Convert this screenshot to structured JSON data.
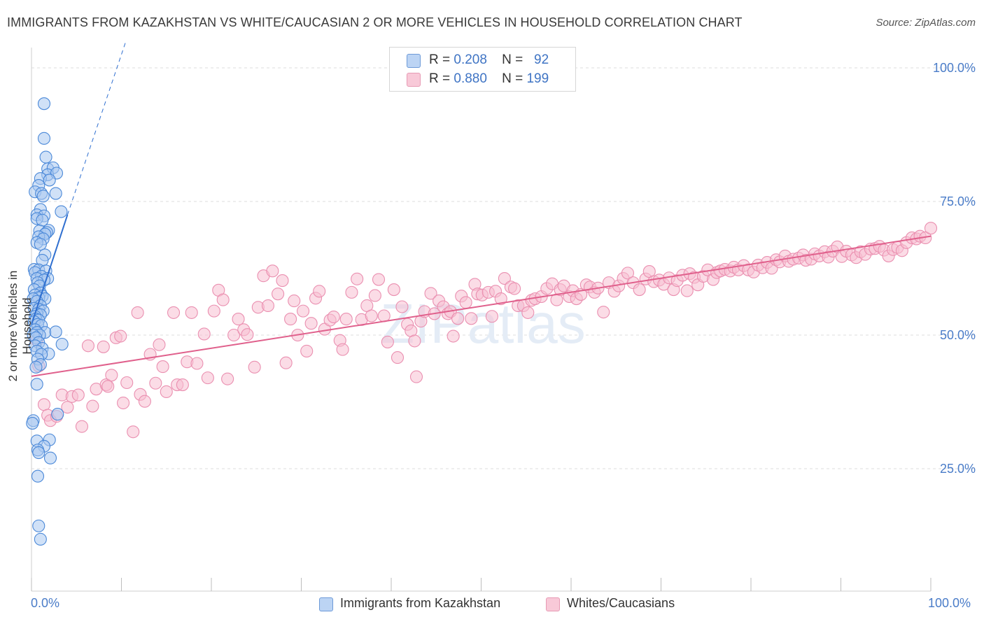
{
  "title": "IMMIGRANTS FROM KAZAKHSTAN VS WHITE/CAUCASIAN 2 OR MORE VEHICLES IN HOUSEHOLD CORRELATION CHART",
  "source": "Source: ZipAtlas.com",
  "watermark": "ZIPatlas",
  "colors": {
    "blue_fill": "#aac8f0",
    "blue_stroke": "#4a88d8",
    "blue_line": "#2f6fd0",
    "pink_fill": "#f7c0d2",
    "pink_stroke": "#ea8fb0",
    "pink_line": "#e0608c",
    "tick_label": "#4a7cc8",
    "grid": "#dddddd"
  },
  "legend": {
    "rows": [
      {
        "r_label": "R =",
        "r_value": "0.208",
        "n_label": "N =",
        "n_value": "92"
      },
      {
        "r_label": "R =",
        "r_value": "0.880",
        "n_label": "N =",
        "n_value": "199"
      }
    ]
  },
  "bottom_legend": [
    "Immigrants from Kazakhstan",
    "Whites/Caucasians"
  ],
  "chart_data": {
    "type": "scatter",
    "title": "IMMIGRANTS FROM KAZAKHSTAN VS WHITE/CAUCASIAN 2 OR MORE VEHICLES IN HOUSEHOLD CORRELATION CHART",
    "xlabel": "",
    "ylabel": "2 or more Vehicles in Household",
    "xlim": [
      0,
      100
    ],
    "ylim": [
      5,
      102
    ],
    "x_tick_labels": [
      "0.0%",
      "100.0%"
    ],
    "y_ticks": [
      25,
      50,
      75,
      100
    ],
    "y_tick_labels": [
      "25.0%",
      "50.0%",
      "75.0%",
      "100.0%"
    ],
    "grid": true,
    "legend_position": "top-center",
    "series": [
      {
        "name": "Immigrants from Kazakhstan",
        "color": "blue",
        "R": 0.208,
        "N": 92,
        "trend": {
          "x": [
            0.0,
            4.0
          ],
          "y": [
            52.0,
            72.5
          ],
          "extended_to": [
            10.5,
            105.0
          ]
        },
        "points": [
          [
            1.4,
            93.3
          ],
          [
            1.4,
            86.8
          ],
          [
            1.6,
            83.3
          ],
          [
            1.8,
            81.1
          ],
          [
            2.4,
            81.3
          ],
          [
            1.8,
            80.0
          ],
          [
            2.8,
            80.3
          ],
          [
            1.0,
            79.3
          ],
          [
            2.0,
            79.0
          ],
          [
            0.8,
            78.0
          ],
          [
            0.4,
            76.8
          ],
          [
            1.1,
            76.5
          ],
          [
            1.3,
            76.0
          ],
          [
            2.7,
            76.5
          ],
          [
            1.0,
            73.5
          ],
          [
            3.3,
            73.1
          ],
          [
            0.6,
            72.5
          ],
          [
            1.4,
            72.3
          ],
          [
            0.6,
            71.8
          ],
          [
            1.2,
            71.5
          ],
          [
            0.9,
            69.5
          ],
          [
            1.9,
            69.6
          ],
          [
            1.7,
            69.2
          ],
          [
            1.5,
            68.9
          ],
          [
            0.8,
            68.4
          ],
          [
            1.3,
            68.0
          ],
          [
            0.6,
            67.3
          ],
          [
            1.0,
            67.0
          ],
          [
            1.5,
            65.0
          ],
          [
            1.2,
            64.0
          ],
          [
            0.3,
            62.3
          ],
          [
            0.8,
            62.2
          ],
          [
            1.6,
            62.0
          ],
          [
            0.4,
            61.7
          ],
          [
            1.1,
            61.0
          ],
          [
            0.6,
            60.6
          ],
          [
            1.8,
            60.6
          ],
          [
            1.4,
            60.3
          ],
          [
            0.7,
            59.8
          ],
          [
            0.9,
            59.2
          ],
          [
            0.3,
            58.5
          ],
          [
            1.0,
            57.9
          ],
          [
            0.4,
            57.5
          ],
          [
            1.2,
            57.3
          ],
          [
            0.8,
            57.0
          ],
          [
            1.5,
            56.8
          ],
          [
            0.2,
            56.8
          ],
          [
            0.6,
            56.3
          ],
          [
            1.0,
            55.5
          ],
          [
            0.3,
            55.0
          ],
          [
            0.8,
            54.8
          ],
          [
            1.3,
            54.5
          ],
          [
            0.6,
            54.0
          ],
          [
            1.0,
            53.8
          ],
          [
            0.4,
            53.5
          ],
          [
            0.5,
            53.0
          ],
          [
            0.8,
            52.8
          ],
          [
            0.3,
            52.5
          ],
          [
            0.7,
            52.0
          ],
          [
            1.1,
            51.8
          ],
          [
            0.4,
            51.0
          ],
          [
            1.5,
            50.5
          ],
          [
            2.7,
            50.6
          ],
          [
            0.6,
            50.5
          ],
          [
            0.9,
            50.0
          ],
          [
            0.2,
            50.0
          ],
          [
            0.5,
            49.5
          ],
          [
            0.8,
            48.6
          ],
          [
            3.4,
            48.3
          ],
          [
            0.4,
            48.0
          ],
          [
            1.2,
            47.5
          ],
          [
            0.6,
            47.0
          ],
          [
            1.9,
            46.5
          ],
          [
            1.1,
            46.4
          ],
          [
            0.7,
            45.5
          ],
          [
            1.0,
            44.5
          ],
          [
            0.5,
            44.0
          ],
          [
            0.6,
            40.8
          ],
          [
            2.9,
            35.2
          ],
          [
            0.2,
            34.0
          ],
          [
            0.1,
            33.5
          ],
          [
            2.0,
            30.4
          ],
          [
            0.6,
            30.2
          ],
          [
            1.4,
            29.2
          ],
          [
            0.7,
            28.5
          ],
          [
            0.8,
            28.0
          ],
          [
            2.1,
            27.0
          ],
          [
            0.7,
            23.6
          ],
          [
            0.8,
            14.3
          ],
          [
            1.0,
            11.8
          ]
        ]
      },
      {
        "name": "Whites/Caucasians",
        "color": "pink",
        "R": 0.88,
        "N": 199,
        "trend": {
          "x": [
            0.0,
            100.0
          ],
          "y": [
            42.3,
            68.5
          ]
        },
        "points": [
          [
            0.6,
            49.0
          ],
          [
            0.8,
            44.2
          ],
          [
            1.4,
            37.0
          ],
          [
            1.8,
            35.0
          ],
          [
            2.1,
            34.0
          ],
          [
            2.8,
            34.8
          ],
          [
            3.4,
            38.8
          ],
          [
            4.0,
            36.5
          ],
          [
            4.5,
            38.5
          ],
          [
            5.2,
            38.8
          ],
          [
            5.6,
            32.9
          ],
          [
            6.3,
            48.0
          ],
          [
            6.8,
            36.7
          ],
          [
            7.2,
            39.9
          ],
          [
            8.0,
            47.8
          ],
          [
            8.3,
            40.7
          ],
          [
            8.5,
            40.4
          ],
          [
            8.9,
            42.5
          ],
          [
            9.4,
            49.5
          ],
          [
            9.9,
            49.8
          ],
          [
            10.2,
            37.3
          ],
          [
            10.6,
            41.1
          ],
          [
            11.3,
            31.9
          ],
          [
            11.8,
            54.2
          ],
          [
            12.1,
            38.9
          ],
          [
            12.6,
            37.6
          ],
          [
            13.2,
            46.4
          ],
          [
            13.8,
            41.0
          ],
          [
            14.2,
            48.2
          ],
          [
            14.6,
            44.1
          ],
          [
            15.0,
            39.4
          ],
          [
            15.8,
            54.2
          ],
          [
            16.2,
            40.7
          ],
          [
            16.8,
            40.7
          ],
          [
            17.3,
            45.0
          ],
          [
            17.8,
            54.2
          ],
          [
            18.4,
            44.7
          ],
          [
            19.2,
            50.2
          ],
          [
            19.6,
            42.0
          ],
          [
            20.3,
            54.5
          ],
          [
            20.8,
            58.4
          ],
          [
            21.3,
            56.6
          ],
          [
            21.8,
            41.8
          ],
          [
            22.5,
            50.0
          ],
          [
            23.0,
            53.0
          ],
          [
            23.6,
            51.0
          ],
          [
            24.0,
            50.1
          ],
          [
            24.8,
            44.0
          ],
          [
            25.2,
            55.2
          ],
          [
            25.8,
            61.1
          ],
          [
            26.3,
            55.5
          ],
          [
            26.8,
            62.0
          ],
          [
            27.4,
            57.7
          ],
          [
            27.9,
            60.2
          ],
          [
            28.3,
            44.8
          ],
          [
            28.8,
            53.0
          ],
          [
            29.2,
            56.4
          ],
          [
            29.6,
            50.0
          ],
          [
            30.2,
            54.5
          ],
          [
            30.6,
            47.0
          ],
          [
            31.1,
            52.2
          ],
          [
            31.6,
            56.9
          ],
          [
            32.0,
            58.2
          ],
          [
            32.6,
            51.1
          ],
          [
            33.2,
            52.8
          ],
          [
            33.6,
            53.4
          ],
          [
            34.3,
            49.0
          ],
          [
            34.6,
            47.3
          ],
          [
            35.0,
            53.0
          ],
          [
            35.6,
            58.0
          ],
          [
            36.2,
            60.5
          ],
          [
            36.7,
            52.9
          ],
          [
            37.3,
            55.5
          ],
          [
            37.8,
            53.6
          ],
          [
            38.2,
            57.4
          ],
          [
            38.6,
            60.4
          ],
          [
            39.2,
            53.6
          ],
          [
            39.6,
            48.7
          ],
          [
            40.3,
            58.5
          ],
          [
            40.7,
            45.8
          ],
          [
            41.2,
            55.3
          ],
          [
            41.8,
            52.0
          ],
          [
            42.2,
            50.8
          ],
          [
            42.6,
            48.9
          ],
          [
            42.8,
            42.2
          ],
          [
            43.3,
            52.6
          ],
          [
            43.7,
            54.4
          ],
          [
            44.4,
            57.8
          ],
          [
            44.8,
            54.0
          ],
          [
            45.3,
            56.4
          ],
          [
            45.8,
            55.3
          ],
          [
            46.3,
            54.0
          ],
          [
            46.6,
            54.4
          ],
          [
            46.9,
            49.8
          ],
          [
            47.4,
            53.1
          ],
          [
            47.8,
            57.3
          ],
          [
            48.3,
            56.1
          ],
          [
            48.9,
            53.1
          ],
          [
            49.3,
            59.5
          ],
          [
            49.6,
            57.7
          ],
          [
            50.1,
            57.5
          ],
          [
            50.8,
            58.0
          ],
          [
            51.2,
            53.5
          ],
          [
            51.6,
            58.2
          ],
          [
            52.2,
            56.8
          ],
          [
            52.6,
            60.6
          ],
          [
            53.3,
            59.0
          ],
          [
            53.7,
            58.7
          ],
          [
            54.1,
            55.5
          ],
          [
            54.7,
            55.5
          ],
          [
            55.2,
            54.2
          ],
          [
            55.6,
            56.5
          ],
          [
            56.0,
            56.8
          ],
          [
            56.7,
            57.2
          ],
          [
            57.3,
            58.7
          ],
          [
            57.9,
            59.6
          ],
          [
            58.4,
            56.6
          ],
          [
            58.8,
            58.5
          ],
          [
            59.2,
            59.2
          ],
          [
            59.8,
            57.2
          ],
          [
            60.2,
            58.3
          ],
          [
            60.6,
            56.8
          ],
          [
            61.1,
            57.6
          ],
          [
            61.7,
            59.4
          ],
          [
            62.1,
            59.0
          ],
          [
            62.6,
            58.0
          ],
          [
            63.0,
            58.8
          ],
          [
            63.6,
            54.3
          ],
          [
            64.2,
            59.8
          ],
          [
            64.8,
            58.2
          ],
          [
            65.3,
            59.2
          ],
          [
            65.8,
            60.6
          ],
          [
            66.3,
            61.6
          ],
          [
            66.9,
            59.8
          ],
          [
            67.6,
            58.5
          ],
          [
            68.3,
            60.5
          ],
          [
            68.7,
            61.9
          ],
          [
            69.2,
            60.0
          ],
          [
            69.8,
            60.3
          ],
          [
            70.3,
            59.5
          ],
          [
            70.9,
            60.7
          ],
          [
            71.4,
            58.5
          ],
          [
            71.8,
            60.2
          ],
          [
            72.4,
            61.2
          ],
          [
            72.9,
            58.3
          ],
          [
            73.2,
            61.5
          ],
          [
            73.7,
            60.8
          ],
          [
            74.1,
            59.4
          ],
          [
            74.7,
            61.0
          ],
          [
            75.2,
            62.2
          ],
          [
            75.8,
            60.4
          ],
          [
            76.2,
            61.7
          ],
          [
            76.6,
            62.0
          ],
          [
            77.1,
            62.3
          ],
          [
            77.7,
            62.0
          ],
          [
            78.1,
            62.7
          ],
          [
            78.6,
            62.2
          ],
          [
            79.2,
            63.0
          ],
          [
            79.7,
            62.2
          ],
          [
            80.3,
            61.8
          ],
          [
            80.8,
            63.1
          ],
          [
            81.3,
            62.6
          ],
          [
            81.8,
            63.6
          ],
          [
            82.3,
            62.5
          ],
          [
            82.8,
            64.1
          ],
          [
            83.2,
            63.7
          ],
          [
            83.8,
            64.8
          ],
          [
            84.2,
            63.8
          ],
          [
            84.7,
            64.2
          ],
          [
            85.3,
            64.4
          ],
          [
            85.8,
            65.0
          ],
          [
            86.1,
            64.0
          ],
          [
            86.7,
            64.2
          ],
          [
            87.1,
            65.2
          ],
          [
            87.6,
            64.8
          ],
          [
            88.2,
            65.6
          ],
          [
            88.6,
            64.6
          ],
          [
            89.1,
            65.7
          ],
          [
            89.6,
            66.5
          ],
          [
            90.1,
            64.7
          ],
          [
            90.6,
            65.7
          ],
          [
            91.2,
            65.0
          ],
          [
            91.7,
            64.5
          ],
          [
            92.2,
            65.6
          ],
          [
            92.7,
            65.1
          ],
          [
            93.3,
            66.1
          ],
          [
            93.8,
            66.2
          ],
          [
            94.3,
            66.6
          ],
          [
            94.8,
            65.9
          ],
          [
            95.3,
            64.8
          ],
          [
            95.8,
            66.0
          ],
          [
            96.3,
            66.4
          ],
          [
            96.8,
            65.8
          ],
          [
            97.3,
            67.3
          ],
          [
            97.9,
            68.2
          ],
          [
            98.4,
            68.0
          ],
          [
            98.8,
            68.5
          ],
          [
            99.4,
            68.2
          ],
          [
            100.0,
            70.0
          ]
        ]
      }
    ]
  }
}
